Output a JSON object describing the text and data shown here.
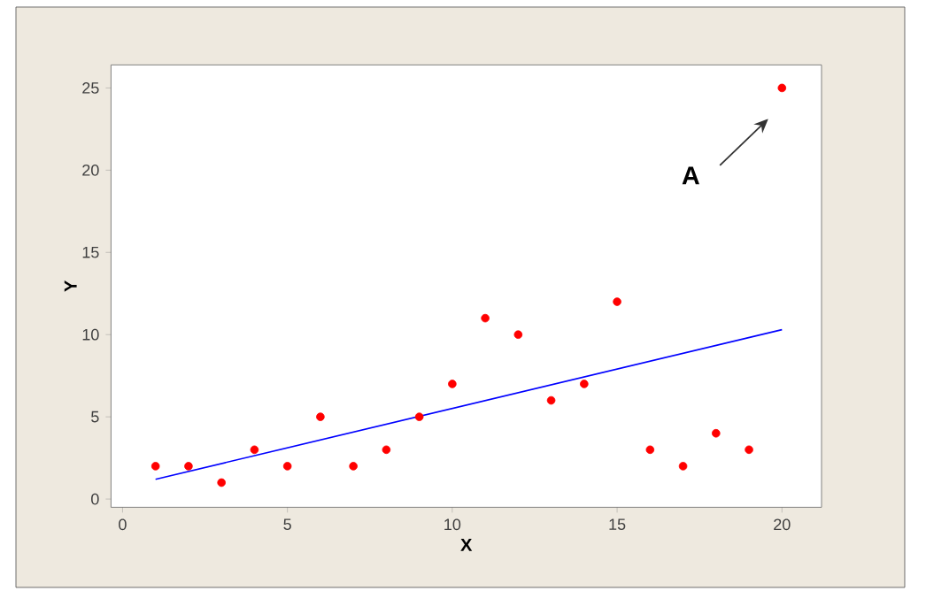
{
  "chart_data": {
    "type": "scatter",
    "xlabel": "X",
    "ylabel": "Y",
    "annotations": [
      "A"
    ],
    "xlim": [
      -0.35,
      21.2
    ],
    "ylim": [
      -0.5,
      26.4
    ],
    "xticks": [
      0,
      5,
      10,
      15,
      20
    ],
    "yticks": [
      0,
      5,
      10,
      15,
      20,
      25
    ],
    "marker": "circle",
    "grid": false,
    "series": [
      {
        "color": "#ff0000",
        "x": [
          1,
          2,
          3,
          4,
          5,
          6,
          7,
          8,
          9,
          10,
          11,
          12,
          13,
          14,
          15,
          16,
          17,
          18,
          19,
          20
        ],
        "values": [
          2,
          2,
          1,
          3,
          2,
          5,
          2,
          3,
          5,
          7,
          11,
          10,
          6,
          7,
          12,
          3,
          2,
          4,
          3,
          25
        ]
      },
      {
        "type": "line",
        "color": "#0000ff",
        "marker": "none",
        "x": [
          1,
          20
        ],
        "values": [
          1.2,
          10.3
        ]
      }
    ]
  }
}
